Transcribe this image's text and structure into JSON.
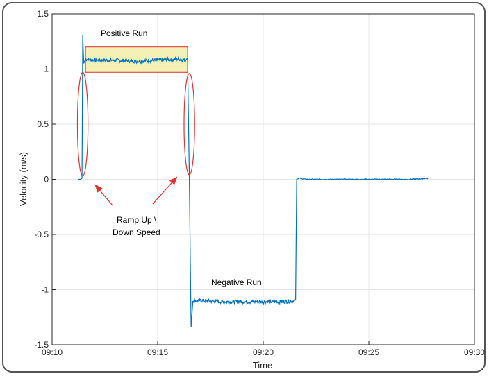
{
  "chart_data": {
    "type": "line",
    "xlabel": "Time",
    "ylabel": "Velocity (m/s)",
    "xlim": [
      "09:10",
      "09:30"
    ],
    "ylim": [
      -1.5,
      1.5
    ],
    "xticks": [
      "09:10",
      "09:15",
      "09:20",
      "09:25",
      "09:30"
    ],
    "yticks": [
      "-1.5",
      "-1",
      "-0.5",
      "0",
      "0.5",
      "1",
      "1.5"
    ],
    "grid": true,
    "series": [
      {
        "color": "#0072BD",
        "x": [
          "09:11:15",
          "09:11:20",
          "09:11:25",
          "09:11:27",
          "09:11:30",
          "09:11:35",
          "09:12:00",
          "09:13:00",
          "09:14:00",
          "09:15:00",
          "09:16:00",
          "09:16:20",
          "09:16:25",
          "09:16:30",
          "09:16:35",
          "09:16:40",
          "09:17:00",
          "09:18:00",
          "09:19:00",
          "09:20:00",
          "09:21:00",
          "09:21:30",
          "09:21:32",
          "09:21:35",
          "09:21:45",
          "09:22:00",
          "09:23:00",
          "09:24:00",
          "09:25:00",
          "09:26:00",
          "09:27:00",
          "09:27:50"
        ],
        "y": [
          0.0,
          0.0,
          0.01,
          1.31,
          1.05,
          1.09,
          1.08,
          1.08,
          1.07,
          1.08,
          1.09,
          1.08,
          1.1,
          0.0,
          -1.34,
          -1.1,
          -1.1,
          -1.11,
          -1.11,
          -1.11,
          -1.11,
          -1.1,
          -1.09,
          0.0,
          0.01,
          0.0,
          0.0,
          0.0,
          0.0,
          0.0,
          0.0,
          0.01
        ]
      }
    ],
    "annotations": {
      "positive_run": "Positive Run",
      "negative_run": "Negative Run",
      "ramp_line1": "Ramp Up \\",
      "ramp_line2": "Down Speed"
    },
    "highlight_box": {
      "x0": "09:11:35",
      "x1": "09:16:25",
      "y0": 0.97,
      "y1": 1.2,
      "fill": "#f5f0b5",
      "stroke": "#d9302b"
    },
    "ramp_ellipses": [
      {
        "center_x": "09:11:27",
        "center_y": 0.5,
        "rx_seconds": 15,
        "ry": 0.47,
        "color": "#e03030"
      },
      {
        "center_x": "09:16:30",
        "center_y": 0.5,
        "rx_seconds": 15,
        "ry": 0.46,
        "color": "#e03030"
      }
    ]
  }
}
